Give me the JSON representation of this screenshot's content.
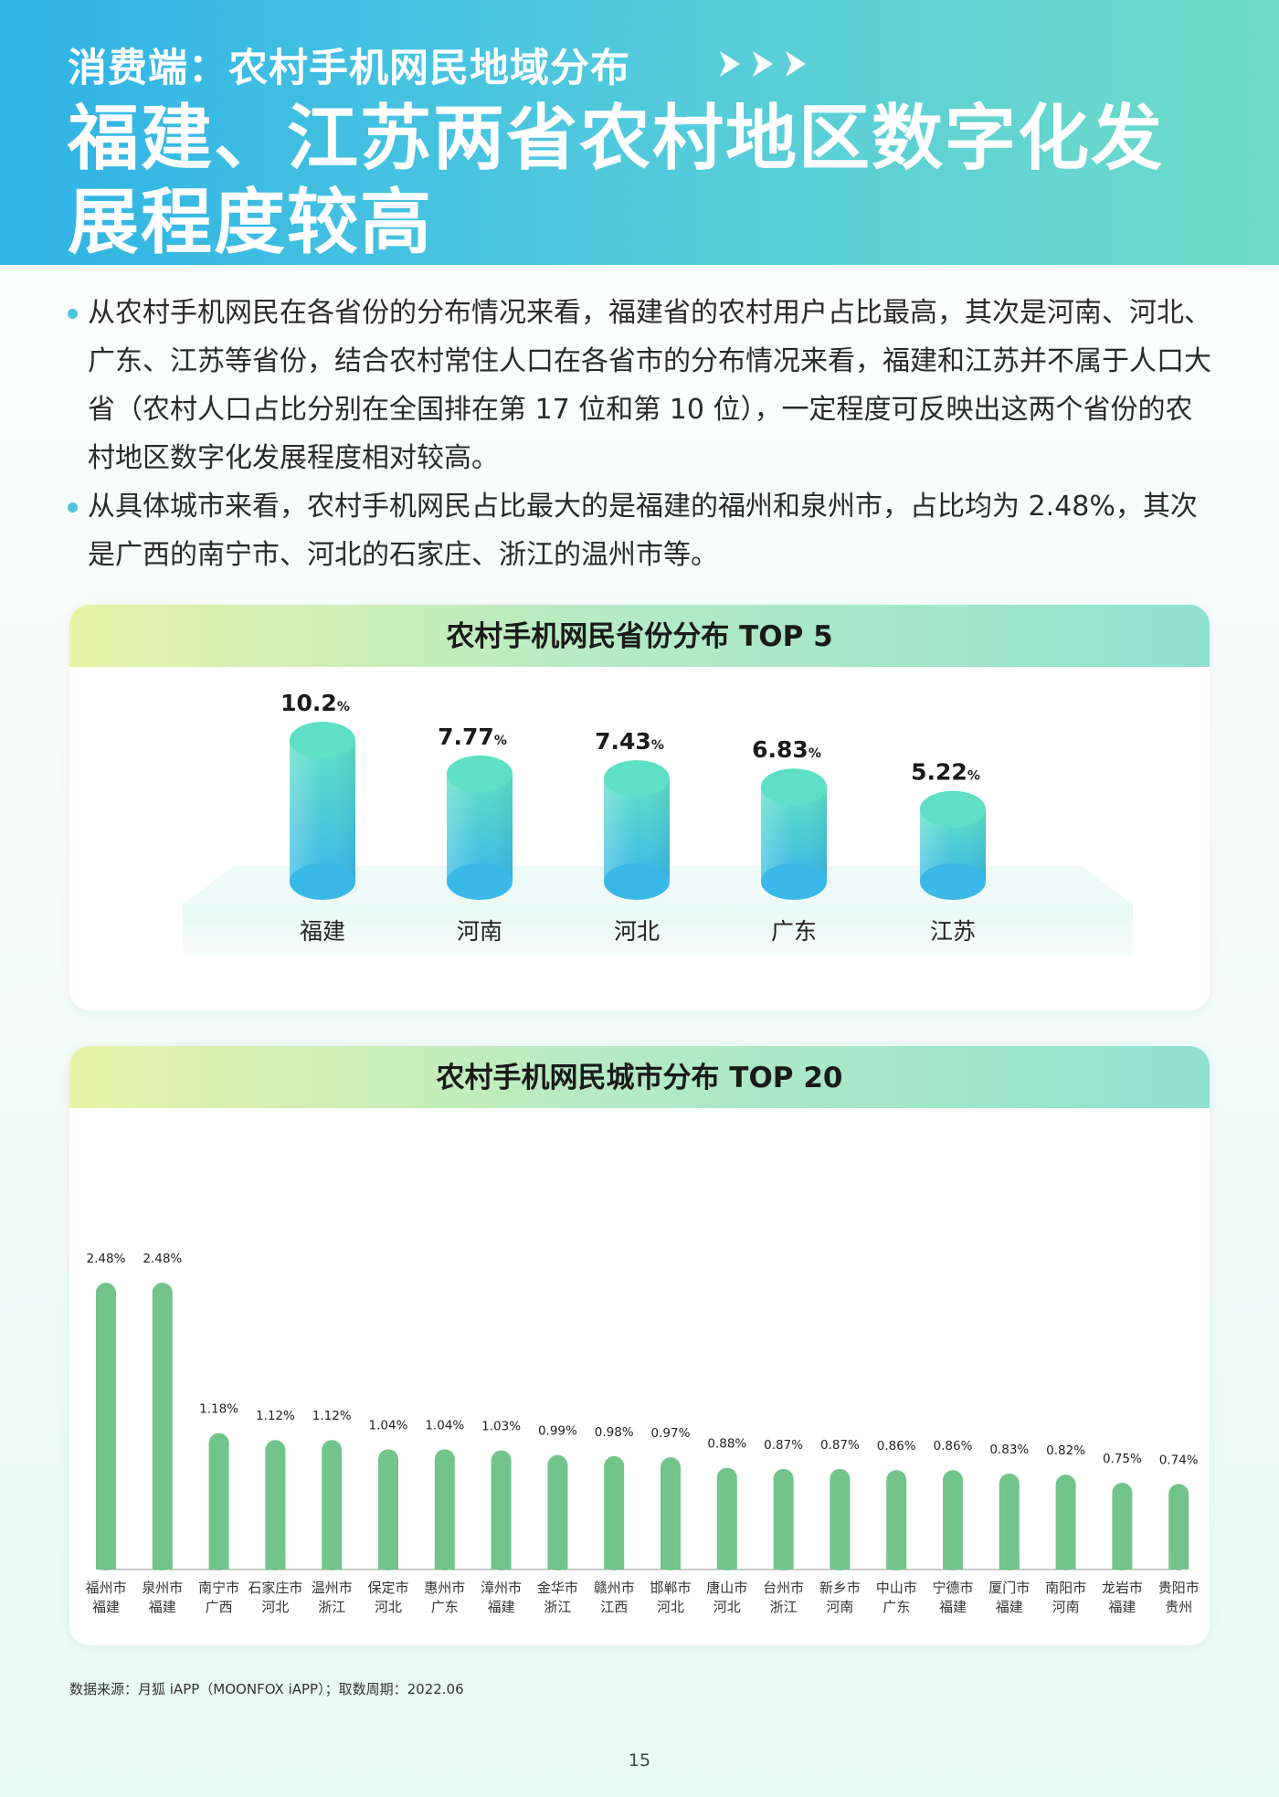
{
  "header": {
    "kicker": "消费端：农村手机网民地域分布",
    "headline": "福建、江苏两省农村地区数字化发展程度较高"
  },
  "bullets": [
    "从农村手机网民在各省份的分布情况来看，福建省的农村用户占比最高，其次是河南、河北、广东、江苏等省份，结合农村常住人口在各省市的分布情况来看，福建和江苏并不属于人口大省（农村人口占比分别在全国排在第 17 位和第 10 位），一定程度可反映出这两个省份的农村地区数字化发展程度相对较高。",
    "从具体城市来看，农村手机网民占比最大的是福建的福州和泉州市，占比均为 2.48%，其次是广西的南宁市、河北的石家庄、浙江的温州市等。"
  ],
  "chart_data": [
    {
      "type": "bar",
      "title": "农村手机网民省份分布 TOP 5",
      "categories": [
        "福建",
        "河南",
        "河北",
        "广东",
        "江苏"
      ],
      "values": [
        10.2,
        7.77,
        7.43,
        6.83,
        5.22
      ],
      "value_labels": [
        "10.2",
        "7.77",
        "7.43",
        "6.83",
        "5.22"
      ],
      "unit": "%",
      "colors": {
        "top": "#5fe0c6",
        "bottom": "#3ab8e8"
      }
    },
    {
      "type": "bar",
      "title": "农村手机网民城市分布 TOP 20",
      "categories": [
        "福州市",
        "泉州市",
        "南宁市",
        "石家庄市",
        "温州市",
        "保定市",
        "惠州市",
        "漳州市",
        "金华市",
        "赣州市",
        "邯郸市",
        "唐山市",
        "台州市",
        "新乡市",
        "中山市",
        "宁德市",
        "厦门市",
        "南阳市",
        "龙岩市",
        "贵阳市"
      ],
      "provinces": [
        "福建",
        "福建",
        "广西",
        "河北",
        "浙江",
        "河北",
        "广东",
        "福建",
        "浙江",
        "江西",
        "河北",
        "河北",
        "浙江",
        "河南",
        "广东",
        "福建",
        "福建",
        "河南",
        "福建",
        "贵州"
      ],
      "values": [
        2.48,
        2.48,
        1.18,
        1.12,
        1.12,
        1.04,
        1.04,
        1.03,
        0.99,
        0.98,
        0.97,
        0.88,
        0.87,
        0.87,
        0.86,
        0.86,
        0.83,
        0.82,
        0.75,
        0.74
      ],
      "value_labels": [
        "2.48%",
        "2.48%",
        "1.18%",
        "1.12%",
        "1.12%",
        "1.04%",
        "1.04%",
        "1.03%",
        "0.99%",
        "0.98%",
        "0.97%",
        "0.88%",
        "0.87%",
        "0.87%",
        "0.86%",
        "0.86%",
        "0.83%",
        "0.82%",
        "0.75%",
        "0.74%"
      ],
      "color": "#72c48b"
    }
  ],
  "footer": {
    "source": "数据来源：月狐 iAPP（MOONFOX iAPP）；取数周期：2022.06",
    "page": "15"
  }
}
